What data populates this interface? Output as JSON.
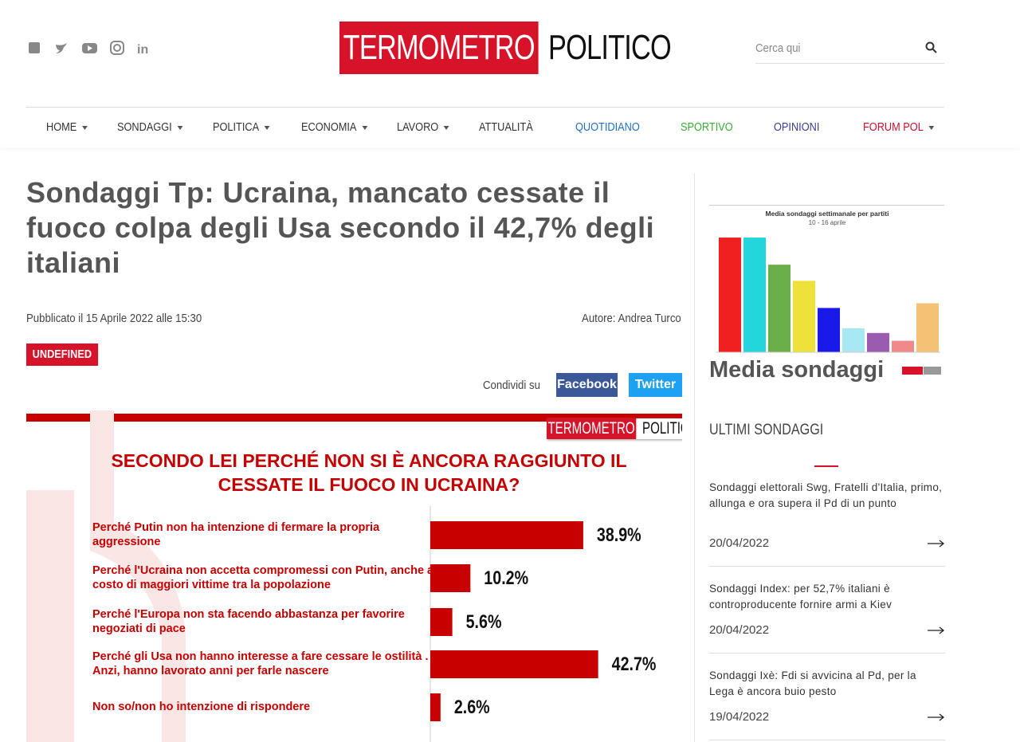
{
  "header": {
    "logo_left": "TERMOMETRO",
    "logo_right": "POLITICO",
    "search_placeholder": "Cerca qui"
  },
  "nav": {
    "items": [
      "HOME",
      "SONDAGGI",
      "POLITICA",
      "ECONOMIA",
      "LAVORO",
      "ATTUALITÀ",
      "QUOTIDIANO",
      "SPORTIVO",
      "OPINIONI",
      "FORUM POL"
    ]
  },
  "article": {
    "title": "Sondaggi Tp: Ucraina, mancato cessate il fuoco colpa degli Usa secondo il 42,7% degli italiani",
    "published": "Pubblicato il 15 Aprile 2022 alle 15:30",
    "author": "Autore: Andrea Turco",
    "tag": "UNDEFINED",
    "share_label": "Condividi su",
    "share_buttons": [
      "Facebook",
      "Twitter"
    ],
    "figure_logo": [
      "TERMOMETRO",
      "POLITICO"
    ]
  },
  "chart_data": [
    {
      "type": "bar",
      "orientation": "horizontal",
      "title": "SECONDO LEI PERCHÉ NON SI È ANCORA RAGGIUNTO IL CESSATE IL FUOCO IN UCRAINA?",
      "categories": [
        "Perché Putin non ha intenzione di fermare la propria aggressione",
        "Perché l'Ucraina non accetta compromessi con Putin, anche a costo di maggiori vittime tra la popolazione",
        "Perché l'Europa non sta facendo abbastanza per favorire negoziati di pace",
        "Perché gli Usa non hanno interesse a fare cessare le ostilità . Anzi, hanno lavorato anni per farle nascere",
        "Non so/non ho intenzione di rispondere"
      ],
      "values": [
        38.9,
        10.2,
        5.6,
        42.7,
        2.6
      ],
      "value_labels": [
        "38.9%",
        "10.2%",
        "5.6%",
        "42.7%",
        "2.6%"
      ],
      "color": "#c80000",
      "xlim": [
        0,
        60
      ]
    },
    {
      "type": "bar",
      "title": "Media sondaggi settimanale per partiti",
      "subtitle": "10 - 16 aprile",
      "categories": [
        null,
        null,
        null,
        null,
        null,
        null,
        null,
        null,
        null
      ],
      "values": [
        22,
        22,
        16.8,
        13.7,
        8.5,
        4.6,
        3.7,
        2.2,
        9.4
      ],
      "colors": [
        "#f02020",
        "#22d6dc",
        "#6aaf4a",
        "#eee23a",
        "#1a1ae8",
        "#a8e8f2",
        "#9b5bb0",
        "#f08a8a",
        "#f4c274"
      ],
      "ylim": [
        0,
        24
      ]
    }
  ],
  "sidebar": {
    "image_caption": "Media sondaggi",
    "section_title": "ULTIMI SONDAGGI",
    "posts": [
      {
        "title": "Sondaggi elettorali Swg, Fratelli d'Italia, primo, allunga e ora supera il Pd di un punto",
        "date": "20/04/2022"
      },
      {
        "title": "Sondaggi Index: per 52,7% italiani è controproducente fornire armi a Kiev",
        "date": "20/04/2022"
      },
      {
        "title": "Sondaggi Ixè: Fdi si avvicina al Pd, per la Lega è ancora buio pesto",
        "date": "19/04/2022"
      }
    ]
  }
}
